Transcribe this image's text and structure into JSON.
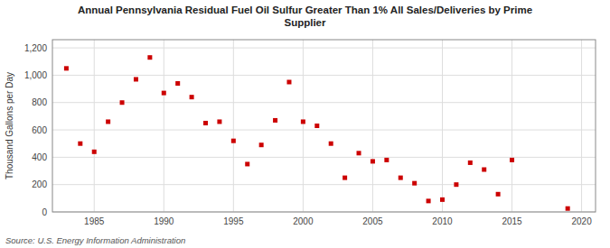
{
  "chart_data": {
    "type": "scatter",
    "title": "Annual Pennsylvania Residual Fuel Oil Sulfur Greater Than 1% All Sales/Deliveries by Prime\nSupplier",
    "ylabel": "Thousand Gallons per Day",
    "source": "Source: U.S. Energy Information Administration",
    "color": "#cc0000",
    "marker": "square",
    "grid": true,
    "xlim": [
      1982,
      2021
    ],
    "ylim": [
      0,
      1260
    ],
    "xticks": [
      1985,
      1990,
      1995,
      2000,
      2005,
      2010,
      2015,
      2020
    ],
    "yticks": [
      0,
      200,
      400,
      600,
      800,
      {
        "value": 1000,
        "label": "1,000"
      },
      {
        "value": 1200,
        "label": "1,200"
      }
    ],
    "x": [
      1983,
      1984,
      1985,
      1986,
      1987,
      1988,
      1989,
      1990,
      1991,
      1992,
      1993,
      1994,
      1995,
      1996,
      1997,
      1998,
      1999,
      2000,
      2001,
      2002,
      2003,
      2004,
      2005,
      2006,
      2007,
      2008,
      2009,
      2010,
      2011,
      2012,
      2013,
      2014,
      2015,
      2019
    ],
    "values": [
      1050,
      500,
      440,
      660,
      800,
      970,
      1130,
      870,
      940,
      840,
      650,
      660,
      520,
      350,
      490,
      670,
      950,
      660,
      630,
      500,
      250,
      430,
      370,
      380,
      250,
      210,
      80,
      90,
      200,
      360,
      310,
      130,
      380,
      25
    ]
  }
}
